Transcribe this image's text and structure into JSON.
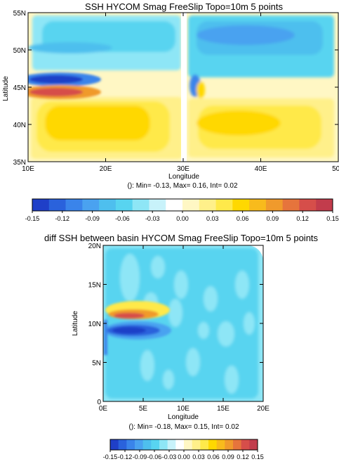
{
  "colors": {
    "palette": [
      "#1f3fc8",
      "#2a62dc",
      "#3a84ea",
      "#4aa2f0",
      "#4ebfee",
      "#58d4f0",
      "#8ee6f6",
      "#c8f2fa",
      "#ffffff",
      "#fff7c4",
      "#fff08a",
      "#ffe94a",
      "#ffd800",
      "#f8bb1c",
      "#f09a2c",
      "#e6743c",
      "#d64e4a",
      "#c23c4c"
    ]
  },
  "chart_data": [
    {
      "type": "heatmap",
      "title": "SSH HYCOM Smag FreeSlip Topo=10m 5 points",
      "xlabel": "Longitude",
      "ylabel": "Latitude",
      "x_ticks": [
        "10E",
        "20E",
        "30E",
        "40E",
        "50E"
      ],
      "y_ticks": [
        "35N",
        "40N",
        "45N",
        "50N",
        "55N"
      ],
      "xlim": [
        10,
        50
      ],
      "ylim": [
        35,
        55
      ],
      "stats": "(): Min= -0.13, Max= 0.16, Int= 0.02",
      "features": [
        {
          "x": [
            11,
            30
          ],
          "y": [
            45.3,
            46.4
          ],
          "value": -0.13
        },
        {
          "x": [
            11,
            30
          ],
          "y": [
            43.5,
            44.8
          ],
          "value": 0.15
        },
        {
          "x": [
            11,
            30
          ],
          "y": [
            36,
            43.5
          ],
          "value": 0.05
        },
        {
          "x": [
            11,
            30
          ],
          "y": [
            47,
            54
          ],
          "value": -0.06
        },
        {
          "x": [
            31,
            50
          ],
          "y": [
            46,
            54
          ],
          "value": -0.07
        },
        {
          "x": [
            31,
            50
          ],
          "y": [
            36,
            44
          ],
          "value": 0.05
        }
      ],
      "colorbar": {
        "min": -0.15,
        "max": 0.15,
        "interval": 0.03,
        "labels": [
          "-0.15",
          "-0.12",
          "-0.09",
          "-0.06",
          "-0.03",
          "0.00",
          "0.03",
          "0.06",
          "0.09",
          "0.12",
          "0.15"
        ]
      }
    },
    {
      "type": "heatmap",
      "title": "diff SSH between basin HYCOM Smag FreeSlip Topo=10m 5 points",
      "xlabel": "Longitude",
      "ylabel": "Latitude",
      "x_ticks": [
        "0E",
        "5E",
        "10E",
        "15E",
        "20E"
      ],
      "y_ticks": [
        "0",
        "5N",
        "10N",
        "15N",
        "20N"
      ],
      "xlim": [
        0,
        20
      ],
      "ylim": [
        0,
        20
      ],
      "stats": "(): Min= -0.18, Max= 0.15, Int= 0.02",
      "features": [
        {
          "x": [
            0.5,
            8
          ],
          "y": [
            8.8,
            10.1
          ],
          "value": -0.18
        },
        {
          "x": [
            0.5,
            8
          ],
          "y": [
            10.3,
            11.7
          ],
          "value": 0.15
        },
        {
          "x": [
            0,
            20
          ],
          "y": [
            0,
            20
          ],
          "value": -0.04
        }
      ],
      "colorbar": {
        "min": -0.15,
        "max": 0.15,
        "interval": 0.03,
        "labels": [
          "-0.15",
          "-0.12",
          "-0.09",
          "-0.06",
          "-0.03",
          "0.00",
          "0.03",
          "0.06",
          "0.09",
          "0.12",
          "0.15"
        ]
      }
    }
  ]
}
